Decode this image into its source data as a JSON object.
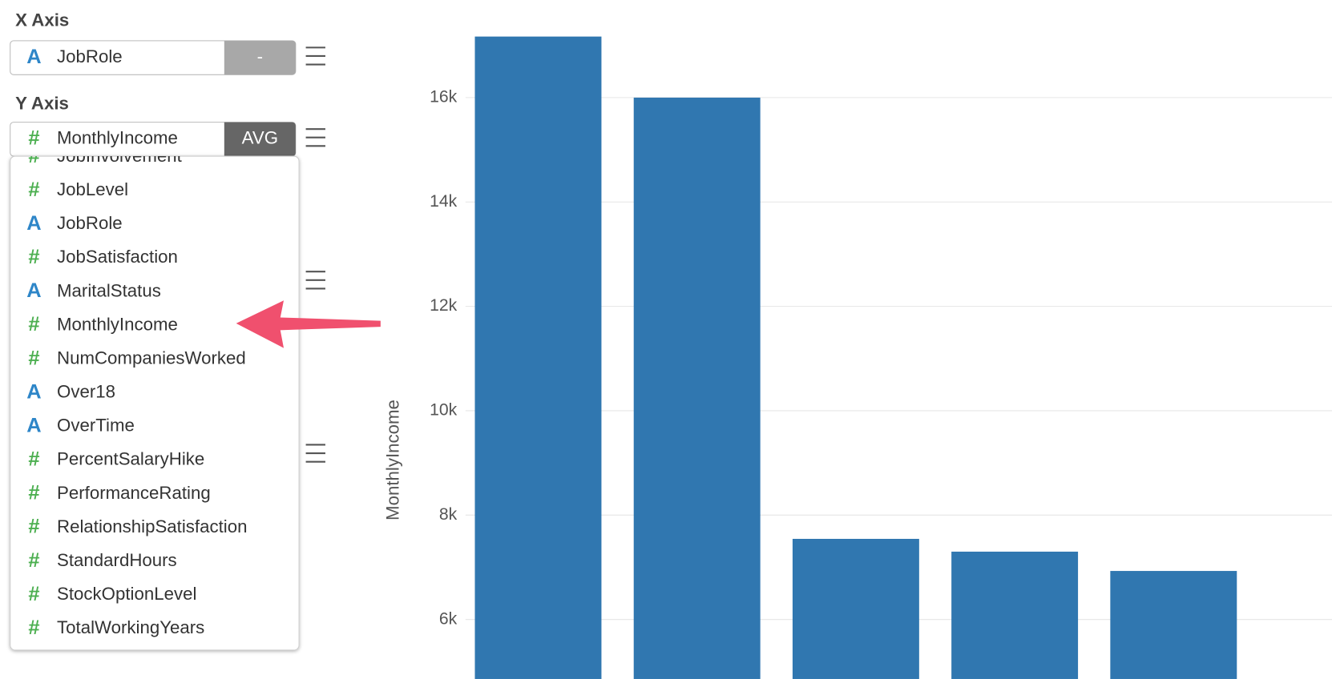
{
  "panel": {
    "x_axis": {
      "label": "X Axis",
      "icon": "A",
      "field": "JobRole",
      "button": "-"
    },
    "y_axis": {
      "label": "Y Axis",
      "icon": "#",
      "field": "MonthlyIncome",
      "button": "AVG"
    },
    "dropdown": [
      {
        "icon": "#",
        "label": "JobInvolvement"
      },
      {
        "icon": "#",
        "label": "JobLevel"
      },
      {
        "icon": "A",
        "label": "JobRole"
      },
      {
        "icon": "#",
        "label": "JobSatisfaction"
      },
      {
        "icon": "A",
        "label": "MaritalStatus"
      },
      {
        "icon": "#",
        "label": "MonthlyIncome"
      },
      {
        "icon": "#",
        "label": "NumCompaniesWorked"
      },
      {
        "icon": "A",
        "label": "Over18"
      },
      {
        "icon": "A",
        "label": "OverTime"
      },
      {
        "icon": "#",
        "label": "PercentSalaryHike"
      },
      {
        "icon": "#",
        "label": "PerformanceRating"
      },
      {
        "icon": "#",
        "label": "RelationshipSatisfaction"
      },
      {
        "icon": "#",
        "label": "StandardHours"
      },
      {
        "icon": "#",
        "label": "StockOptionLevel"
      },
      {
        "icon": "#",
        "label": "TotalWorkingYears"
      }
    ]
  },
  "chart_data": {
    "type": "bar",
    "y_label": "MonthlyIncome",
    "categories": [
      null,
      null,
      null,
      null,
      null
    ],
    "values": [
      17170,
      16000,
      7545,
      7300,
      6930
    ],
    "color": "#3077b0",
    "ylim": [
      4860,
      17870
    ],
    "yticks": [
      {
        "value": 6000,
        "label": "6k"
      },
      {
        "value": 8000,
        "label": "8k"
      },
      {
        "value": 10000,
        "label": "10k"
      },
      {
        "value": 12000,
        "label": "12k"
      },
      {
        "value": 14000,
        "label": "14k"
      },
      {
        "value": 16000,
        "label": "16k"
      }
    ],
    "grid": true
  }
}
